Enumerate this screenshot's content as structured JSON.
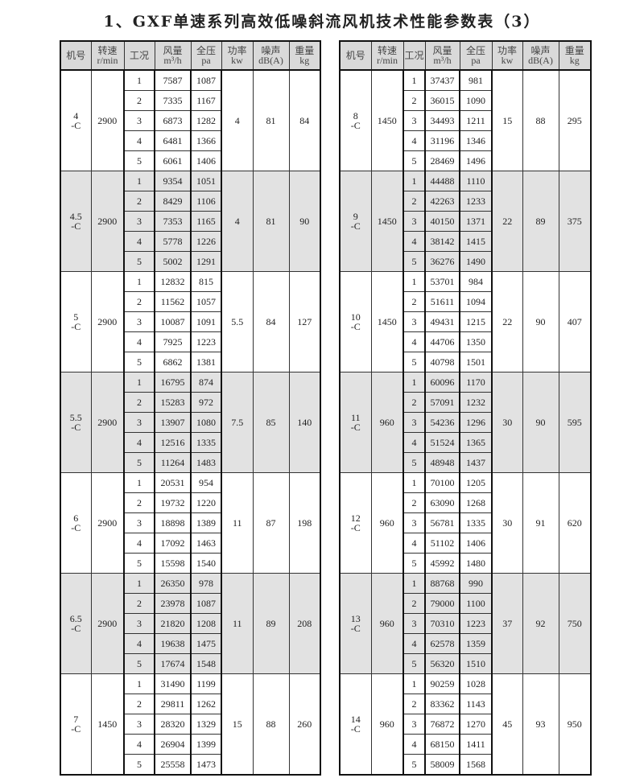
{
  "title": "1、GXF单速系列高效低噪斜流风机技术性能参数表（3）",
  "headers": [
    {
      "l1": "机号",
      "l2": ""
    },
    {
      "l1": "转速",
      "l2": "r/min"
    },
    {
      "l1": "工况",
      "l2": ""
    },
    {
      "l1": "风量",
      "l2": "m³/h"
    },
    {
      "l1": "全压",
      "l2": "pa"
    },
    {
      "l1": "功率",
      "l2": "kw"
    },
    {
      "l1": "噪声",
      "l2": "dB(A)"
    },
    {
      "l1": "重量",
      "l2": "kg"
    }
  ],
  "left": [
    {
      "model": "4",
      "suffix": "-C",
      "speed": "2900",
      "power": "4",
      "noise": "81",
      "weight": "84",
      "rows": [
        [
          "1",
          "7587",
          "1087"
        ],
        [
          "2",
          "7335",
          "1167"
        ],
        [
          "3",
          "6873",
          "1282"
        ],
        [
          "4",
          "6481",
          "1366"
        ],
        [
          "5",
          "6061",
          "1406"
        ]
      ]
    },
    {
      "model": "4.5",
      "suffix": "-C",
      "speed": "2900",
      "power": "4",
      "noise": "81",
      "weight": "90",
      "rows": [
        [
          "1",
          "9354",
          "1051"
        ],
        [
          "2",
          "8429",
          "1106"
        ],
        [
          "3",
          "7353",
          "1165"
        ],
        [
          "4",
          "5778",
          "1226"
        ],
        [
          "5",
          "5002",
          "1291"
        ]
      ]
    },
    {
      "model": "5",
      "suffix": "-C",
      "speed": "2900",
      "power": "5.5",
      "noise": "84",
      "weight": "127",
      "rows": [
        [
          "1",
          "12832",
          "815"
        ],
        [
          "2",
          "11562",
          "1057"
        ],
        [
          "3",
          "10087",
          "1091"
        ],
        [
          "4",
          "7925",
          "1223"
        ],
        [
          "5",
          "6862",
          "1381"
        ]
      ]
    },
    {
      "model": "5.5",
      "suffix": "-C",
      "speed": "2900",
      "power": "7.5",
      "noise": "85",
      "weight": "140",
      "rows": [
        [
          "1",
          "16795",
          "874"
        ],
        [
          "2",
          "15283",
          "972"
        ],
        [
          "3",
          "13907",
          "1080"
        ],
        [
          "4",
          "12516",
          "1335"
        ],
        [
          "5",
          "11264",
          "1483"
        ]
      ]
    },
    {
      "model": "6",
      "suffix": "-C",
      "speed": "2900",
      "power": "11",
      "noise": "87",
      "weight": "198",
      "rows": [
        [
          "1",
          "20531",
          "954"
        ],
        [
          "2",
          "19732",
          "1220"
        ],
        [
          "3",
          "18898",
          "1389"
        ],
        [
          "4",
          "17092",
          "1463"
        ],
        [
          "5",
          "15598",
          "1540"
        ]
      ]
    },
    {
      "model": "6.5",
      "suffix": "-C",
      "speed": "2900",
      "power": "11",
      "noise": "89",
      "weight": "208",
      "rows": [
        [
          "1",
          "26350",
          "978"
        ],
        [
          "2",
          "23978",
          "1087"
        ],
        [
          "3",
          "21820",
          "1208"
        ],
        [
          "4",
          "19638",
          "1475"
        ],
        [
          "5",
          "17674",
          "1548"
        ]
      ]
    },
    {
      "model": "7",
      "suffix": "-C",
      "speed": "1450",
      "power": "15",
      "noise": "88",
      "weight": "260",
      "rows": [
        [
          "1",
          "31490",
          "1199"
        ],
        [
          "2",
          "29811",
          "1262"
        ],
        [
          "3",
          "28320",
          "1329"
        ],
        [
          "4",
          "26904",
          "1399"
        ],
        [
          "5",
          "25558",
          "1473"
        ]
      ]
    }
  ],
  "right": [
    {
      "model": "8",
      "suffix": "-C",
      "speed": "1450",
      "power": "15",
      "noise": "88",
      "weight": "295",
      "rows": [
        [
          "1",
          "37437",
          "981"
        ],
        [
          "2",
          "36015",
          "1090"
        ],
        [
          "3",
          "34493",
          "1211"
        ],
        [
          "4",
          "31196",
          "1346"
        ],
        [
          "5",
          "28469",
          "1496"
        ]
      ]
    },
    {
      "model": "9",
      "suffix": "-C",
      "speed": "1450",
      "power": "22",
      "noise": "89",
      "weight": "375",
      "rows": [
        [
          "1",
          "44488",
          "1110"
        ],
        [
          "2",
          "42263",
          "1233"
        ],
        [
          "3",
          "40150",
          "1371"
        ],
        [
          "4",
          "38142",
          "1415"
        ],
        [
          "5",
          "36276",
          "1490"
        ]
      ]
    },
    {
      "model": "10",
      "suffix": "-C",
      "speed": "1450",
      "power": "22",
      "noise": "90",
      "weight": "407",
      "rows": [
        [
          "1",
          "53701",
          "984"
        ],
        [
          "2",
          "51611",
          "1094"
        ],
        [
          "3",
          "49431",
          "1215"
        ],
        [
          "4",
          "44706",
          "1350"
        ],
        [
          "5",
          "40798",
          "1501"
        ]
      ]
    },
    {
      "model": "11",
      "suffix": "-C",
      "speed": "960",
      "power": "30",
      "noise": "90",
      "weight": "595",
      "rows": [
        [
          "1",
          "60096",
          "1170"
        ],
        [
          "2",
          "57091",
          "1232"
        ],
        [
          "3",
          "54236",
          "1296"
        ],
        [
          "4",
          "51524",
          "1365"
        ],
        [
          "5",
          "48948",
          "1437"
        ]
      ]
    },
    {
      "model": "12",
      "suffix": "-C",
      "speed": "960",
      "power": "30",
      "noise": "91",
      "weight": "620",
      "rows": [
        [
          "1",
          "70100",
          "1205"
        ],
        [
          "2",
          "63090",
          "1268"
        ],
        [
          "3",
          "56781",
          "1335"
        ],
        [
          "4",
          "51102",
          "1406"
        ],
        [
          "5",
          "45992",
          "1480"
        ]
      ]
    },
    {
      "model": "13",
      "suffix": "-C",
      "speed": "960",
      "power": "37",
      "noise": "92",
      "weight": "750",
      "rows": [
        [
          "1",
          "88768",
          "990"
        ],
        [
          "2",
          "79000",
          "1100"
        ],
        [
          "3",
          "70310",
          "1223"
        ],
        [
          "4",
          "62578",
          "1359"
        ],
        [
          "5",
          "56320",
          "1510"
        ]
      ]
    },
    {
      "model": "14",
      "suffix": "-C",
      "speed": "960",
      "power": "45",
      "noise": "93",
      "weight": "950",
      "rows": [
        [
          "1",
          "90259",
          "1028"
        ],
        [
          "2",
          "83362",
          "1143"
        ],
        [
          "3",
          "76872",
          "1270"
        ],
        [
          "4",
          "68150",
          "1411"
        ],
        [
          "5",
          "58009",
          "1568"
        ]
      ]
    }
  ],
  "colors": {
    "shade": "#e2e2e2",
    "header": "#d9d9d9"
  }
}
